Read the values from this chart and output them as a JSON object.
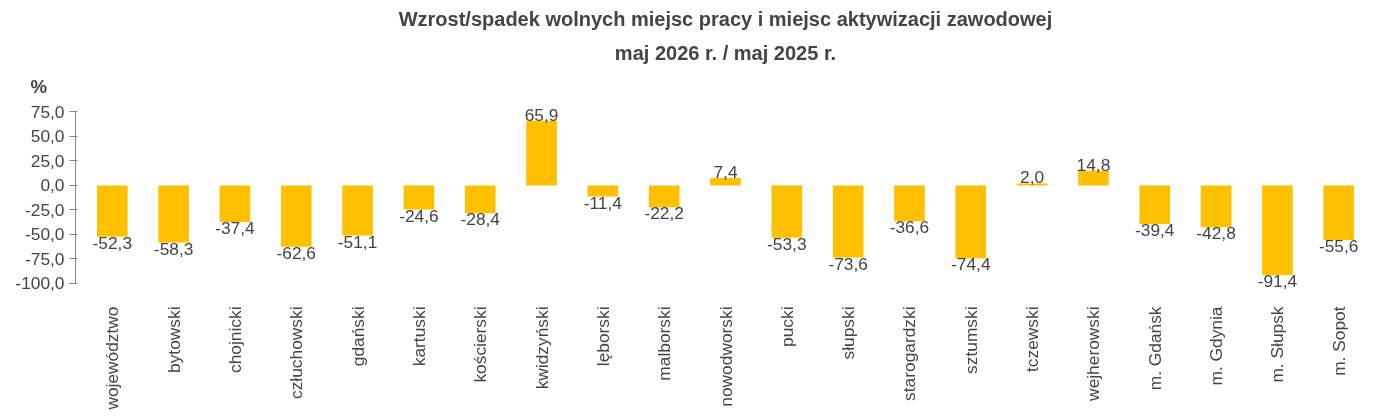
{
  "chart_data": {
    "type": "bar",
    "title": "Wzrost/spadek wolnych miejsc pracy i miejsc aktywizacji zawodowej",
    "subtitle": "maj 2026 r. / maj 2025 r.",
    "ylabel": "%",
    "categories": [
      "województwo",
      "bytowski",
      "chojnicki",
      "człuchowski",
      "gdański",
      "kartuski",
      "kościerski",
      "kwidzyński",
      "lęborski",
      "malborski",
      "nowodworski",
      "pucki",
      "słupski",
      "starogardzki",
      "sztumski",
      "tczewski",
      "wejherowski",
      "m. Gdańsk",
      "m. Gdynia",
      "m. Słupsk",
      "m. Sopot"
    ],
    "values": [
      -52.3,
      -58.3,
      -37.4,
      -62.6,
      -51.1,
      -24.6,
      -28.4,
      65.9,
      -11.4,
      -22.2,
      7.4,
      -53.3,
      -73.6,
      -36.6,
      -74.4,
      2.0,
      14.8,
      -39.4,
      -42.8,
      -91.4,
      -55.6
    ],
    "value_labels": [
      "-52,3",
      "-58,3",
      "-37,4",
      "-62,6",
      "-51,1",
      "-24,6",
      "-28,4",
      "65,9",
      "-11,4",
      "-22,2",
      "7,4",
      "-53,3",
      "-73,6",
      "-36,6",
      "-74,4",
      "2,0",
      "14,8",
      "-39,4",
      "-42,8",
      "-91,4",
      "-55,6"
    ],
    "color": "#ffc000",
    "ylim": [
      -100,
      75
    ],
    "yticks": [
      {
        "value": -100,
        "label": "-100,0"
      },
      {
        "value": -75,
        "label": "-75,0"
      },
      {
        "value": -50,
        "label": "-50,0"
      },
      {
        "value": -25,
        "label": "-25,0"
      },
      {
        "value": 0,
        "label": "0,0"
      },
      {
        "value": 25,
        "label": "25,0"
      },
      {
        "value": 50,
        "label": "50,0"
      },
      {
        "value": 75,
        "label": "75,0"
      }
    ],
    "grid": false
  }
}
